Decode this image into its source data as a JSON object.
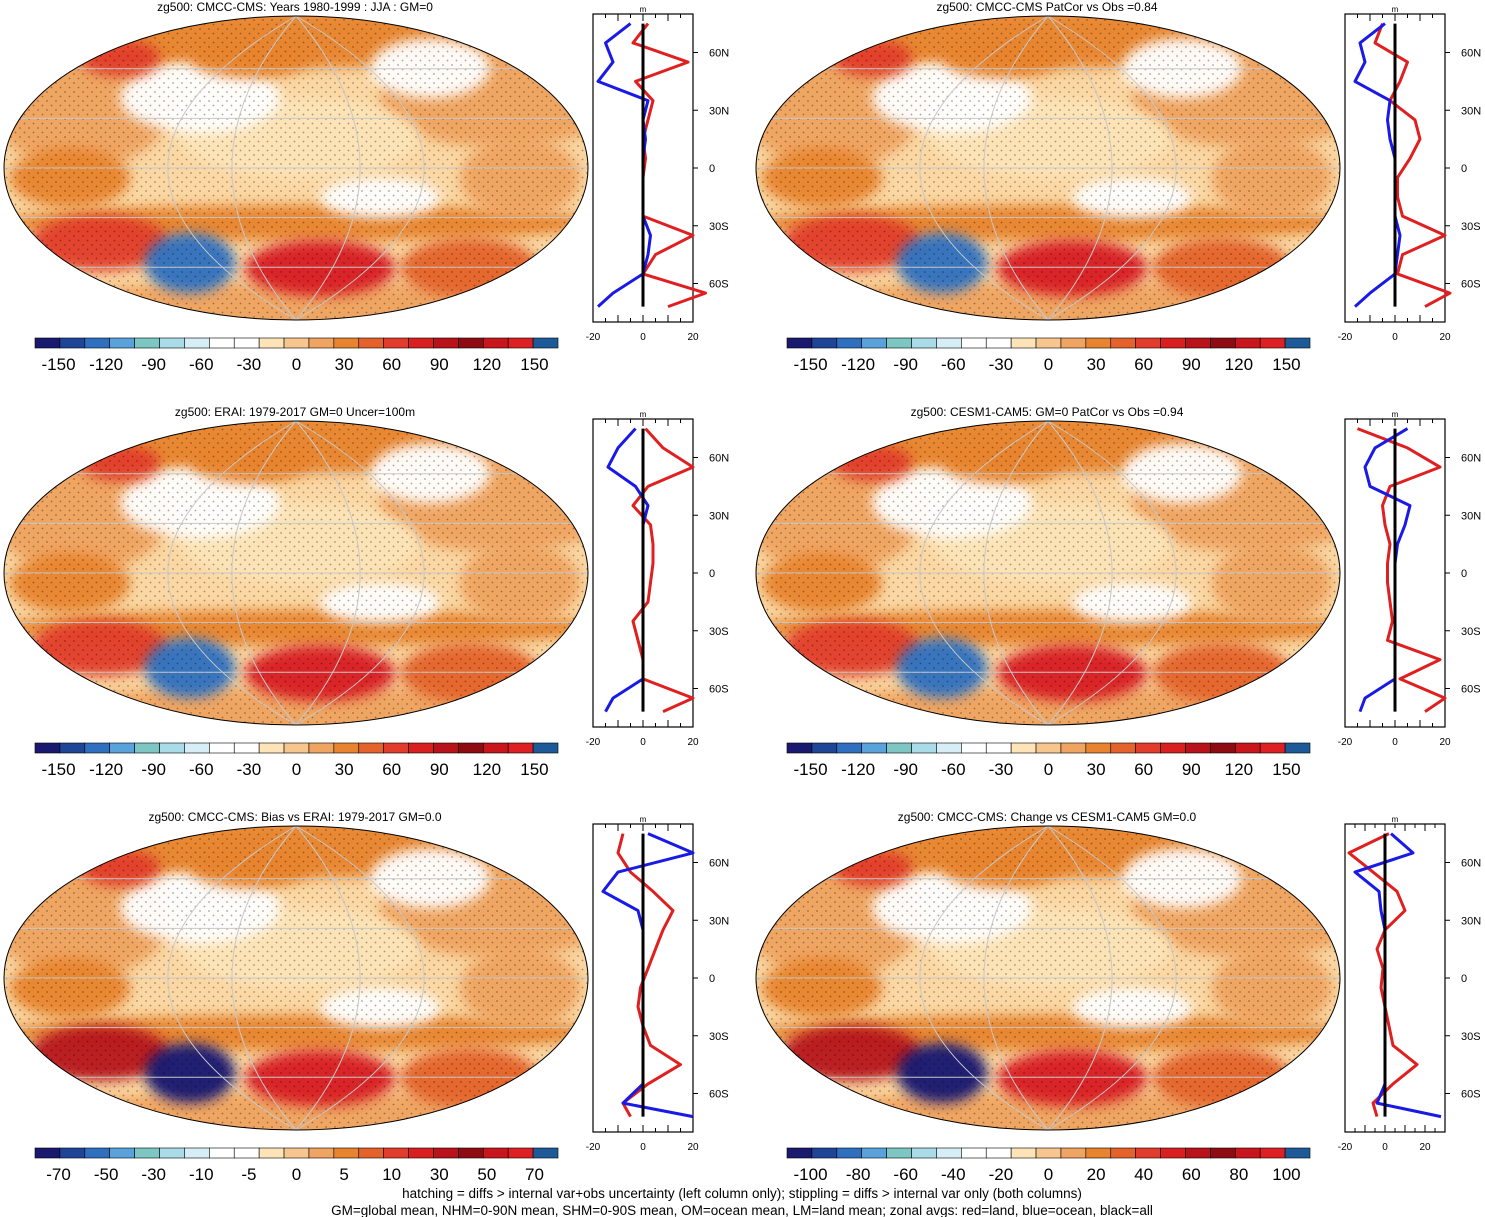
{
  "colors": {
    "palette_ncl": [
      "#191970",
      "#1a3d8c",
      "#2a6db6",
      "#4c96d8",
      "#7fc4c8",
      "#a8d6e6",
      "#d9f0f7",
      "#ffffff",
      "#ffffff",
      "#fde0b0",
      "#f6c28a",
      "#eea25a",
      "#e8822e",
      "#e4632a",
      "#e23a2a",
      "#d21f1f",
      "#a80f14",
      "#8c0a10",
      "#cc1a1a",
      "#e01e22",
      "#2c5f9e"
    ],
    "land_line": "#e02020",
    "ocean_line": "#1a1ae6",
    "all_line": "#000000"
  },
  "footer": {
    "line1": "hatching = diffs > internal var+obs uncertainty (left column only); stippling = diffs > internal var only (both columns)",
    "line2": "GM=global mean, NHM=0-90N mean, SHM=0-90S mean, OM=ocean mean, LM=land mean; zonal avgs: red=land, blue=ocean, black=all"
  },
  "zonal_unit": "m",
  "lat_ticks": [
    "60N",
    "30N",
    "0",
    "30S",
    "60S"
  ],
  "panels": [
    {
      "title": "zg500: CMCC-CMS: Years 1980-1999 : JJA : GM=0",
      "cbar": [
        "-150",
        "-120",
        "-90",
        "-60",
        "-30",
        "0",
        "30",
        "60",
        "90",
        "120",
        "150"
      ],
      "zx": [
        "-20",
        "0",
        "20"
      ],
      "zxmax": 20
    },
    {
      "title": "zg500: CMCC-CMS PatCor vs Obs =0.84",
      "cbar": [
        "-150",
        "-120",
        "-90",
        "-60",
        "-30",
        "0",
        "30",
        "60",
        "90",
        "120",
        "150"
      ],
      "zx": [
        "-20",
        "0",
        "20"
      ],
      "zxmax": 20
    },
    {
      "title": "zg500: ERAI: 1979-2017 GM=0 Uncer=100m",
      "cbar": [
        "-150",
        "-120",
        "-90",
        "-60",
        "-30",
        "0",
        "30",
        "60",
        "90",
        "120",
        "150"
      ],
      "zx": [
        "-20",
        "0",
        "20"
      ],
      "zxmax": 20
    },
    {
      "title": "zg500: CESM1-CAM5: GM=0 PatCor vs Obs =0.94",
      "cbar": [
        "-150",
        "-120",
        "-90",
        "-60",
        "-30",
        "0",
        "30",
        "60",
        "90",
        "120",
        "150"
      ],
      "zx": [
        "-20",
        "0",
        "20"
      ],
      "zxmax": 20
    },
    {
      "title": "zg500: CMCC-CMS: Bias vs ERAI: 1979-2017 GM=0.0",
      "cbar": [
        "-70",
        "-50",
        "-30",
        "-10",
        "-5",
        "0",
        "5",
        "10",
        "30",
        "50",
        "70"
      ],
      "zx": [
        "-20",
        "0",
        "20"
      ],
      "zxmax": 20
    },
    {
      "title": "zg500: CMCC-CMS: Change vs CESM1-CAM5 GM=0.0",
      "cbar": [
        "-100",
        "-80",
        "-60",
        "-40",
        "-20",
        "0",
        "20",
        "40",
        "60",
        "80",
        "100"
      ],
      "zx": [
        "-20",
        "0",
        "20"
      ],
      "zxmax": 30
    }
  ],
  "chart_data": [
    {
      "type": "heatmap",
      "title": "zg500: CMCC-CMS: Years 1980-1999 : JJA : GM=0",
      "colorbar_ticks": [
        -150,
        -120,
        -90,
        -60,
        -30,
        0,
        30,
        60,
        90,
        120,
        150
      ],
      "zonal": {
        "lat": [
          75,
          65,
          55,
          45,
          35,
          25,
          15,
          5,
          -5,
          -15,
          -25,
          -35,
          -45,
          -55,
          -65,
          -72
        ],
        "land": [
          2,
          -4,
          18,
          -3,
          4,
          2,
          0,
          1,
          0,
          0,
          0,
          20,
          5,
          0,
          25,
          10
        ],
        "ocean": [
          -5,
          -15,
          -12,
          -18,
          2,
          0,
          1,
          0,
          0,
          0,
          0,
          3,
          2,
          0,
          -12,
          -18
        ],
        "all": [
          0,
          0,
          0,
          0,
          0,
          0,
          0,
          0,
          0,
          0,
          0,
          0,
          0,
          0,
          0,
          0
        ]
      }
    },
    {
      "type": "heatmap",
      "title": "zg500: CMCC-CMS PatCor vs Obs =0.84",
      "colorbar_ticks": [
        -150,
        -120,
        -90,
        -60,
        -30,
        0,
        30,
        60,
        90,
        120,
        150
      ],
      "zonal": {
        "lat": [
          75,
          65,
          55,
          45,
          35,
          25,
          15,
          5,
          -5,
          -15,
          -25,
          -35,
          -45,
          -55,
          -65,
          -72
        ],
        "land": [
          -5,
          -8,
          5,
          2,
          -2,
          8,
          10,
          6,
          1,
          1,
          3,
          20,
          3,
          1,
          22,
          12
        ],
        "ocean": [
          -4,
          -14,
          -12,
          -16,
          -2,
          -3,
          -2,
          0,
          0,
          0,
          0,
          2,
          1,
          0,
          -10,
          -16
        ],
        "all": [
          0,
          0,
          0,
          0,
          0,
          0,
          0,
          0,
          0,
          0,
          0,
          0,
          0,
          0,
          0,
          0
        ]
      }
    },
    {
      "type": "heatmap",
      "title": "zg500: ERAI: 1979-2017 GM=0 Uncer=100m",
      "colorbar_ticks": [
        -150,
        -120,
        -90,
        -60,
        -30,
        0,
        30,
        60,
        90,
        120,
        150
      ],
      "zonal": {
        "lat": [
          75,
          65,
          55,
          45,
          35,
          25,
          15,
          5,
          -5,
          -15,
          -25,
          -35,
          -45,
          -55,
          -65,
          -72
        ],
        "land": [
          1,
          8,
          20,
          2,
          -4,
          3,
          4,
          4,
          3,
          2,
          -4,
          -2,
          0,
          0,
          20,
          8
        ],
        "ocean": [
          -3,
          -10,
          -14,
          -3,
          2,
          0,
          0,
          0,
          0,
          0,
          0,
          0,
          0,
          0,
          -12,
          -15
        ],
        "all": [
          0,
          0,
          0,
          0,
          0,
          0,
          0,
          0,
          0,
          0,
          0,
          0,
          0,
          0,
          0,
          0
        ]
      }
    },
    {
      "type": "heatmap",
      "title": "zg500: CESM1-CAM5: GM=0 PatCor vs Obs =0.94",
      "colorbar_ticks": [
        -150,
        -120,
        -90,
        -60,
        -30,
        0,
        30,
        60,
        90,
        120,
        150
      ],
      "zonal": {
        "lat": [
          75,
          65,
          55,
          45,
          35,
          25,
          15,
          5,
          -5,
          -15,
          -25,
          -35,
          -45,
          -55,
          -65,
          -72
        ],
        "land": [
          -15,
          5,
          18,
          -2,
          -5,
          -4,
          -2,
          -3,
          -3,
          -2,
          -1,
          -3,
          18,
          2,
          20,
          12
        ],
        "ocean": [
          5,
          -8,
          -12,
          -10,
          6,
          4,
          1,
          0,
          0,
          0,
          0,
          0,
          0,
          0,
          -12,
          -14
        ],
        "all": [
          0,
          0,
          0,
          0,
          0,
          0,
          0,
          0,
          0,
          0,
          0,
          0,
          0,
          0,
          0,
          0
        ]
      }
    },
    {
      "type": "heatmap",
      "title": "zg500: CMCC-CMS: Bias vs ERAI: 1979-2017 GM=0.0",
      "colorbar_ticks": [
        -70,
        -50,
        -30,
        -10,
        -5,
        0,
        5,
        10,
        30,
        50,
        70
      ],
      "zonal": {
        "lat": [
          75,
          65,
          55,
          45,
          35,
          25,
          15,
          5,
          -5,
          -15,
          -25,
          -35,
          -45,
          -55,
          -65,
          -72
        ],
        "land": [
          -8,
          -10,
          -5,
          4,
          12,
          8,
          5,
          2,
          -1,
          -2,
          0,
          3,
          15,
          2,
          -8,
          -5
        ],
        "ocean": [
          2,
          20,
          -10,
          -16,
          -2,
          0,
          0,
          0,
          0,
          0,
          0,
          0,
          0,
          0,
          -8,
          20
        ],
        "all": [
          0,
          0,
          0,
          0,
          0,
          0,
          0,
          0,
          0,
          0,
          0,
          0,
          0,
          0,
          0,
          0
        ]
      }
    },
    {
      "type": "heatmap",
      "title": "zg500: CMCC-CMS: Change vs CESM1-CAM5 GM=0.0",
      "colorbar_ticks": [
        -100,
        -80,
        -60,
        -40,
        -20,
        0,
        20,
        40,
        60,
        80,
        100
      ],
      "zonal": {
        "lat": [
          75,
          65,
          55,
          45,
          35,
          25,
          15,
          5,
          -5,
          -15,
          -25,
          -35,
          -45,
          -55,
          -65,
          -72
        ],
        "land": [
          2,
          -18,
          -6,
          6,
          10,
          0,
          -4,
          -1,
          -2,
          0,
          2,
          4,
          16,
          4,
          -6,
          -4
        ],
        "ocean": [
          3,
          14,
          -15,
          -3,
          -2,
          0,
          0,
          0,
          0,
          0,
          0,
          0,
          0,
          0,
          -4,
          28
        ],
        "all": [
          0,
          0,
          0,
          0,
          0,
          0,
          0,
          0,
          0,
          0,
          0,
          0,
          0,
          0,
          0,
          0
        ]
      }
    }
  ]
}
